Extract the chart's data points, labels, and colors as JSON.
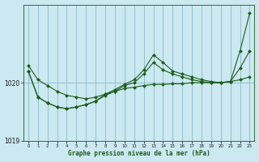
{
  "title": "Graphe pression niveau de la mer (hPa)",
  "background_color": "#cce8f0",
  "grid_color": "#88bbcc",
  "line_color": "#1a5c1a",
  "xlim": [
    -0.5,
    23.5
  ],
  "ylim": [
    1019.55,
    1021.35
  ],
  "ytick_positions": [
    1019,
    1020
  ],
  "xticks": [
    0,
    1,
    2,
    3,
    4,
    5,
    6,
    7,
    8,
    9,
    10,
    11,
    12,
    13,
    14,
    15,
    16,
    17,
    18,
    19,
    20,
    21,
    22,
    23
  ],
  "series": [
    [
      1020.3,
      1020.05,
      1019.95,
      1019.85,
      1019.78,
      1019.75,
      1019.72,
      1019.75,
      1019.8,
      1019.85,
      1019.9,
      1019.92,
      1019.95,
      1019.97,
      1019.97,
      1019.98,
      1019.98,
      1020.0,
      1020.0,
      1020.0,
      1020.0,
      1020.02,
      1020.05,
      1020.1
    ],
    [
      1020.2,
      1019.75,
      1019.65,
      1019.58,
      1019.55,
      1019.58,
      1019.62,
      1019.68,
      1019.78,
      1019.85,
      1019.95,
      1020.0,
      1020.15,
      1020.35,
      1020.22,
      1020.15,
      1020.1,
      1020.05,
      1020.02,
      1020.0,
      1020.0,
      1020.02,
      1020.25,
      1020.55
    ],
    [
      1020.2,
      1019.75,
      1019.65,
      1019.58,
      1019.55,
      1019.58,
      1019.62,
      1019.68,
      1019.8,
      1019.88,
      1019.97,
      1020.05,
      1020.22,
      1020.48,
      1020.35,
      1020.2,
      1020.15,
      1020.1,
      1020.05,
      1020.02,
      1020.0,
      1020.02,
      1020.55,
      1021.2
    ]
  ]
}
